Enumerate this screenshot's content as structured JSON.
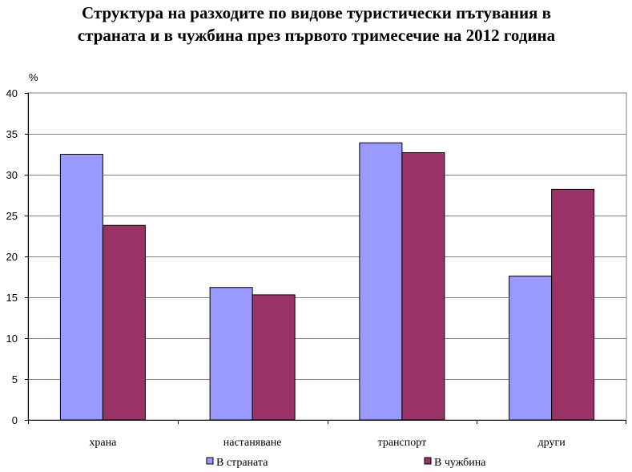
{
  "chart_data": {
    "type": "bar",
    "title": "Структура на разходите по видове туристически пътувания в\nстраната и в чужбина през първото тримесечие на 2012 година",
    "ylabel": "%",
    "xlabel": "",
    "ylim": [
      0,
      40
    ],
    "yticks": [
      "0",
      "5",
      "10",
      "15",
      "20",
      "25",
      "30",
      "35",
      "40"
    ],
    "categories": [
      "храна",
      "настаняване",
      "транспорт",
      "други"
    ],
    "series": [
      {
        "name": "В страната",
        "color": "#9999ff",
        "values": [
          32.5,
          16.2,
          33.9,
          17.6
        ]
      },
      {
        "name": "В чужбина",
        "color": "#993366",
        "values": [
          23.8,
          15.3,
          32.7,
          28.2
        ]
      }
    ],
    "grid": true,
    "legend_position": "bottom"
  }
}
